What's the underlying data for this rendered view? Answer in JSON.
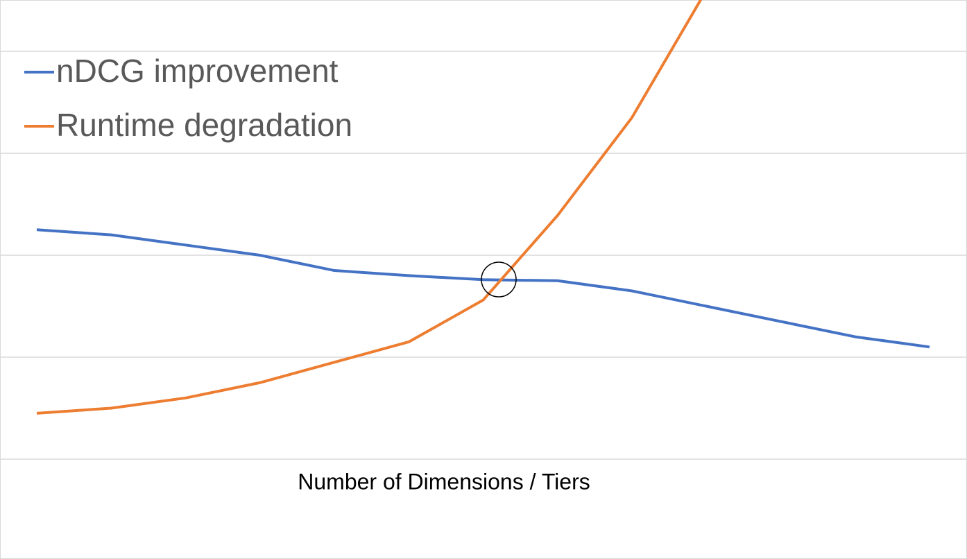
{
  "chart_data": {
    "type": "line",
    "x_label": "Number of Dimensions / Tiers",
    "categories": [
      null,
      null,
      null,
      null,
      null,
      null,
      null,
      null,
      null,
      null,
      null,
      null,
      null
    ],
    "series": [
      {
        "name": "nDCG improvement",
        "color": "#4472c4",
        "values": [
          2.25,
          2.2,
          2.1,
          2.0,
          1.85,
          1.8,
          1.76,
          1.75,
          1.65,
          1.5,
          1.35,
          1.2,
          1.1
        ]
      },
      {
        "name": "Runtime degradation",
        "color": "#ed7d31",
        "values": [
          0.45,
          0.5,
          0.6,
          0.75,
          0.95,
          1.15,
          1.56,
          2.39,
          3.35,
          4.6,
          null,
          null,
          null
        ]
      }
    ],
    "ylim": [
      0,
      4.5
    ],
    "yticks": [
      0,
      1,
      2,
      3,
      4
    ],
    "grid": true,
    "legend": "top-left"
  }
}
